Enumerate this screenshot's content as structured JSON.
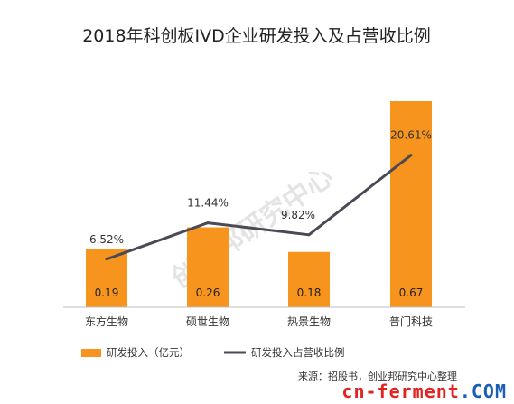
{
  "chart_data": {
    "type": "bar",
    "title": "2018年科创板IVD企业研发投入及占营收比例",
    "categories": [
      "东方生物",
      "硕世生物",
      "热景生物",
      "普门科技"
    ],
    "series": [
      {
        "name": "研发投入（亿元）",
        "type": "bar",
        "values": [
          0.19,
          0.26,
          0.18,
          0.67
        ],
        "labels": [
          "0.19",
          "0.26",
          "0.18",
          "0.67"
        ],
        "color": "#F7941D"
      },
      {
        "name": "研发投入占营收比例",
        "type": "line",
        "values": [
          6.52,
          11.44,
          9.82,
          20.61
        ],
        "labels": [
          "6.52%",
          "11.44%",
          "9.82%",
          "20.61%"
        ],
        "color": "#4A4A56"
      }
    ],
    "bar_ylim": [
      0,
      0.72
    ],
    "line_ylim": [
      0,
      30
    ],
    "legend_position": "bottom",
    "grid": false
  },
  "watermark": "创业邦研究中心",
  "source": "来源：招股书，创业邦研究中心整理",
  "brand": {
    "part1": "cn-ferment",
    "part2": ".COM"
  }
}
